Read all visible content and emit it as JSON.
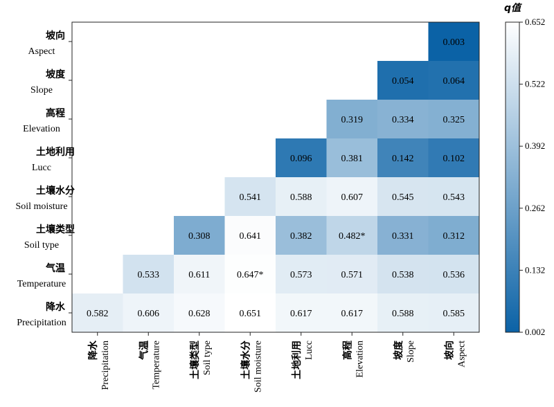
{
  "chart_data": {
    "type": "heatmap",
    "rows": [
      {
        "zh": "坡向",
        "en": "Aspect"
      },
      {
        "zh": "坡度",
        "en": "Slope"
      },
      {
        "zh": "高程",
        "en": "Elevation"
      },
      {
        "zh": "土地利用",
        "en": "Lucc"
      },
      {
        "zh": "土壤水分",
        "en": "Soil moisture"
      },
      {
        "zh": "土壤类型",
        "en": "Soil type"
      },
      {
        "zh": "气温",
        "en": "Temperature"
      },
      {
        "zh": "降水",
        "en": "Precipitation"
      }
    ],
    "columns": [
      {
        "zh": "降水",
        "en": "Precipitation"
      },
      {
        "zh": "气温",
        "en": "Temperature"
      },
      {
        "zh": "土壤类型",
        "en": "Soil type"
      },
      {
        "zh": "土壤水分",
        "en": "Soil moisture"
      },
      {
        "zh": "土地利用",
        "en": "Lucc"
      },
      {
        "zh": "高程",
        "en": "Elevation"
      },
      {
        "zh": "坡度",
        "en": "Slope"
      },
      {
        "zh": "坡向",
        "en": "Aspect"
      }
    ],
    "values": [
      [
        null,
        null,
        null,
        null,
        null,
        null,
        null,
        0.003
      ],
      [
        null,
        null,
        null,
        null,
        null,
        null,
        0.054,
        0.064
      ],
      [
        null,
        null,
        null,
        null,
        null,
        0.319,
        0.334,
        0.325
      ],
      [
        null,
        null,
        null,
        null,
        0.096,
        0.381,
        0.142,
        0.102
      ],
      [
        null,
        null,
        null,
        0.541,
        0.588,
        0.607,
        0.545,
        0.543
      ],
      [
        null,
        null,
        0.308,
        0.641,
        0.382,
        0.482,
        0.331,
        0.312
      ],
      [
        null,
        0.533,
        0.611,
        0.647,
        0.573,
        0.571,
        0.538,
        0.536
      ],
      [
        0.582,
        0.606,
        0.628,
        0.651,
        0.617,
        0.617,
        0.588,
        0.585
      ]
    ],
    "labels": [
      [
        null,
        null,
        null,
        null,
        null,
        null,
        null,
        "0.003"
      ],
      [
        null,
        null,
        null,
        null,
        null,
        null,
        "0.054",
        "0.064"
      ],
      [
        null,
        null,
        null,
        null,
        null,
        "0.319",
        "0.334",
        "0.325"
      ],
      [
        null,
        null,
        null,
        null,
        "0.096",
        "0.381",
        "0.142",
        "0.102"
      ],
      [
        null,
        null,
        null,
        "0.541",
        "0.588",
        "0.607",
        "0.545",
        "0.543"
      ],
      [
        null,
        null,
        "0.308",
        "0.641",
        "0.382",
        "0.482*",
        "0.331",
        "0.312"
      ],
      [
        null,
        "0.533",
        "0.611",
        "0.647*",
        "0.573",
        "0.571",
        "0.538",
        "0.536"
      ],
      [
        "0.582",
        "0.606",
        "0.628",
        "0.651",
        "0.617",
        "0.617",
        "0.588",
        "0.585"
      ]
    ],
    "colorbar": {
      "title": "q值",
      "min": 0.002,
      "max": 0.652,
      "ticks": [
        "0.002",
        "0.132",
        "0.262",
        "0.392",
        "0.522",
        "0.652"
      ],
      "color_low": "#0b62a6",
      "color_high": "#ffffff"
    }
  }
}
